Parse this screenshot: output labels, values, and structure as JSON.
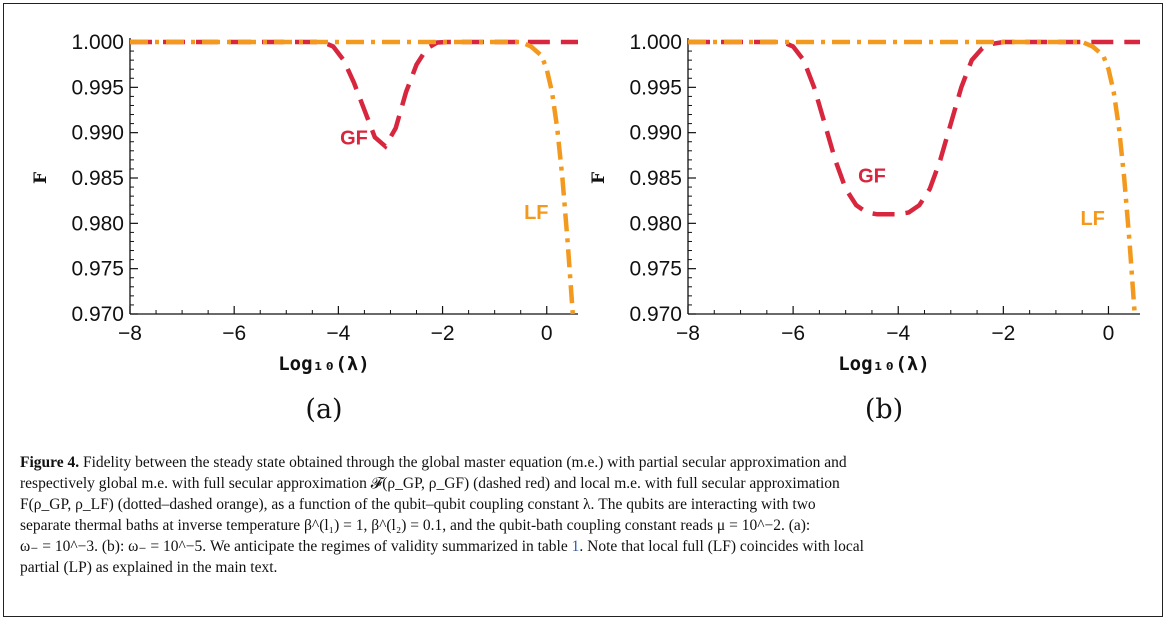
{
  "caption": {
    "label": "Figure 4.",
    "line1": "Fidelity between the steady state obtained through the global master equation (m.e.) with partial secular approximation and",
    "line2": "respectively global m.e. with full secular approximation 𝓕(ρ_GP, ρ_GF) (dashed red) and local m.e. with full secular approximation",
    "line3": "F(ρ_GP, ρ_LF) (dotted–dashed orange), as a function of the qubit–qubit coupling constant λ. The qubits are interacting with two",
    "line4": "separate thermal baths at inverse temperature β^(l₁) = 1, β^(l₂) = 0.1, and the qubit-bath coupling constant reads μ = 10^−2. (a):",
    "line5a": "ω₋ = 10^−3. (b): ω₋ = 10^−5. We anticipate the regimes of validity summarized in table ",
    "line5ref": "1",
    "line5b": ". Note that local full (LF) coincides with local",
    "line6": "partial (LP) as explained in the main text."
  },
  "colors": {
    "gf": "#d7263d",
    "lf": "#f39a1e",
    "axis": "#111111"
  },
  "chart_data": [
    {
      "type": "line",
      "panel_label": "(a)",
      "xlabel": "Log₁₀(λ)",
      "ylabel": "F",
      "xlim": [
        -8,
        0.6
      ],
      "ylim": [
        0.97,
        1.0
      ],
      "xticks": [
        -8,
        -6,
        -4,
        -2,
        0
      ],
      "xtick_labels": [
        "−8",
        "−6",
        "−4",
        "−2",
        "0"
      ],
      "yticks": [
        0.97,
        0.975,
        0.98,
        0.985,
        0.99,
        0.995,
        1.0
      ],
      "ytick_labels": [
        "0.970",
        "0.975",
        "0.980",
        "0.985",
        "0.990",
        "0.995",
        "1.000"
      ],
      "grid": false,
      "series": [
        {
          "name": "GF",
          "style": "dashed",
          "x": [
            -8,
            -4.3,
            -4.1,
            -3.9,
            -3.7,
            -3.5,
            -3.3,
            -3.1,
            -2.9,
            -2.7,
            -2.5,
            -2.3,
            -2.1,
            -1.9,
            0.6
          ],
          "y": [
            1.0,
            1.0,
            0.9995,
            0.998,
            0.9955,
            0.9925,
            0.9895,
            0.9885,
            0.9905,
            0.9945,
            0.9975,
            0.9993,
            0.99995,
            1.0,
            1.0
          ],
          "label_at": [
            -3.7,
            0.9887
          ]
        },
        {
          "name": "LF",
          "style": "dashdot",
          "x": [
            -8,
            -0.5,
            -0.3,
            -0.1,
            0.0,
            0.1,
            0.2,
            0.3,
            0.4,
            0.5
          ],
          "y": [
            1.0,
            1.0,
            0.9995,
            0.9985,
            0.997,
            0.9945,
            0.9905,
            0.985,
            0.978,
            0.97
          ],
          "label_at": [
            -0.2,
            0.9805
          ]
        }
      ]
    },
    {
      "type": "line",
      "panel_label": "(b)",
      "xlabel": "Log₁₀(λ)",
      "ylabel": "F",
      "xlim": [
        -8,
        0.6
      ],
      "ylim": [
        0.97,
        1.0
      ],
      "xticks": [
        -8,
        -6,
        -4,
        -2,
        0
      ],
      "xtick_labels": [
        "−8",
        "−6",
        "−4",
        "−2",
        "0"
      ],
      "yticks": [
        0.97,
        0.975,
        0.98,
        0.985,
        0.99,
        0.995,
        1.0
      ],
      "ytick_labels": [
        "0.970",
        "0.975",
        "0.980",
        "0.985",
        "0.990",
        "0.995",
        "1.000"
      ],
      "grid": false,
      "series": [
        {
          "name": "GF",
          "style": "dashed",
          "x": [
            -8,
            -6.2,
            -6.0,
            -5.8,
            -5.6,
            -5.4,
            -5.2,
            -5.0,
            -4.8,
            -4.6,
            -4.4,
            -4.2,
            -4.0,
            -3.8,
            -3.6,
            -3.4,
            -3.2,
            -3.0,
            -2.8,
            -2.6,
            -2.4,
            -2.2,
            -2.0,
            0.6
          ],
          "y": [
            1.0,
            1.0,
            0.9995,
            0.998,
            0.995,
            0.991,
            0.987,
            0.9838,
            0.982,
            0.9812,
            0.981,
            0.981,
            0.981,
            0.9812,
            0.982,
            0.9838,
            0.987,
            0.991,
            0.995,
            0.998,
            0.9993,
            0.9998,
            1.0,
            1.0
          ],
          "label_at": [
            -4.5,
            0.9845
          ]
        },
        {
          "name": "LF",
          "style": "dashdot",
          "x": [
            -8,
            -0.5,
            -0.3,
            -0.1,
            0.0,
            0.1,
            0.2,
            0.3,
            0.4,
            0.5
          ],
          "y": [
            1.0,
            1.0,
            0.9995,
            0.9985,
            0.997,
            0.9945,
            0.9905,
            0.985,
            0.978,
            0.97
          ],
          "label_at": [
            -0.3,
            0.9798
          ]
        }
      ]
    }
  ]
}
